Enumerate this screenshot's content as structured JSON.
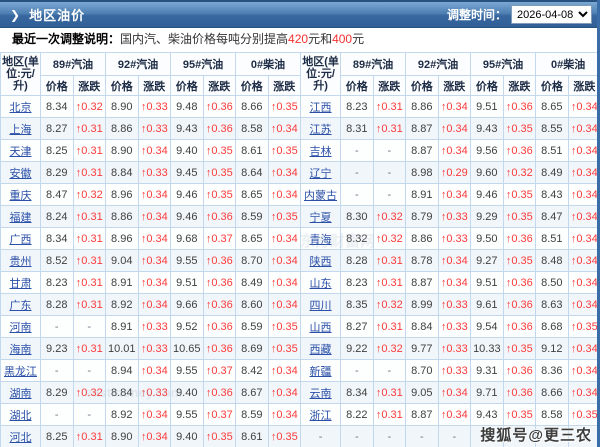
{
  "header_bar": {
    "arrow": "❯",
    "title": "地区油价",
    "adjust_label": "调整时间：",
    "date": "2026-04-08"
  },
  "notice": {
    "label": "最近一次调整说明：",
    "text_before": "国内汽、柴油价格每吨分别提高",
    "red1": "420",
    "mid": "元和",
    "red2": "400",
    "tail": "元"
  },
  "table": {
    "region_header": "地区(单位:元/升)",
    "groups": [
      "89#汽油",
      "92#汽油",
      "95#汽油",
      "0#柴油"
    ],
    "sub": [
      "价格",
      "涨跌"
    ],
    "rows": [
      {
        "l": [
          "北京",
          "8.34",
          "↑0.32",
          "8.90",
          "↑0.33",
          "9.48",
          "↑0.36",
          "8.66",
          "↑0.35"
        ],
        "r": [
          "江西",
          "8.23",
          "↑0.31",
          "8.86",
          "↑0.34",
          "9.51",
          "↑0.36",
          "8.65",
          "↑0.34"
        ]
      },
      {
        "l": [
          "上海",
          "8.27",
          "↑0.31",
          "8.86",
          "↑0.33",
          "9.43",
          "↑0.36",
          "8.58",
          "↑0.34"
        ],
        "r": [
          "江苏",
          "8.31",
          "↑0.31",
          "8.87",
          "↑0.34",
          "9.43",
          "↑0.35",
          "8.55",
          "↑0.34"
        ]
      },
      {
        "l": [
          "天津",
          "8.25",
          "↑0.31",
          "8.90",
          "↑0.34",
          "9.40",
          "↑0.35",
          "8.61",
          "↑0.35"
        ],
        "r": [
          "吉林",
          "-",
          "-",
          "8.87",
          "↑0.34",
          "9.56",
          "↑0.36",
          "8.51",
          "↑0.34"
        ]
      },
      {
        "l": [
          "安徽",
          "8.29",
          "↑0.31",
          "8.84",
          "↑0.33",
          "9.45",
          "↑0.35",
          "8.64",
          "↑0.34"
        ],
        "r": [
          "辽宁",
          "-",
          "-",
          "8.98",
          "↑0.29",
          "9.60",
          "↑0.32",
          "8.49",
          "↑0.34"
        ]
      },
      {
        "l": [
          "重庆",
          "8.47",
          "↑0.32",
          "8.96",
          "↑0.34",
          "9.46",
          "↑0.35",
          "8.65",
          "↑0.34"
        ],
        "r": [
          "内蒙古",
          "-",
          "-",
          "8.91",
          "↑0.34",
          "9.46",
          "↑0.35",
          "8.43",
          "↑0.34"
        ]
      },
      {
        "l": [
          "福建",
          "8.24",
          "↑0.31",
          "8.86",
          "↑0.34",
          "9.46",
          "↑0.36",
          "8.59",
          "↑0.35"
        ],
        "r": [
          "宁夏",
          "8.30",
          "↑0.32",
          "8.79",
          "↑0.33",
          "9.29",
          "↑0.35",
          "8.47",
          "↑0.34"
        ]
      },
      {
        "l": [
          "广西",
          "8.34",
          "↑0.31",
          "8.96",
          "↑0.34",
          "9.68",
          "↑0.37",
          "8.65",
          "↑0.34"
        ],
        "r": [
          "青海",
          "8.32",
          "↑0.32",
          "8.86",
          "↑0.33",
          "9.50",
          "↑0.36",
          "8.51",
          "↑0.34"
        ]
      },
      {
        "l": [
          "贵州",
          "8.52",
          "↑0.31",
          "9.04",
          "↑0.34",
          "9.55",
          "↑0.36",
          "8.70",
          "↑0.34"
        ],
        "r": [
          "陕西",
          "8.28",
          "↑0.31",
          "8.78",
          "↑0.34",
          "9.27",
          "↑0.35",
          "8.48",
          "↑0.34"
        ]
      },
      {
        "l": [
          "甘肃",
          "8.23",
          "↑0.31",
          "8.91",
          "↑0.34",
          "9.51",
          "↑0.36",
          "8.49",
          "↑0.34"
        ],
        "r": [
          "山东",
          "8.23",
          "↑0.31",
          "8.87",
          "↑0.34",
          "9.51",
          "↑0.36",
          "8.50",
          "↑0.34"
        ]
      },
      {
        "l": [
          "广东",
          "8.28",
          "↑0.31",
          "8.92",
          "↑0.34",
          "9.66",
          "↑0.36",
          "8.60",
          "↑0.34"
        ],
        "r": [
          "四川",
          "8.35",
          "↑0.32",
          "8.99",
          "↑0.33",
          "9.61",
          "↑0.36",
          "8.63",
          "↑0.34"
        ]
      },
      {
        "l": [
          "河南",
          "-",
          "-",
          "8.91",
          "↑0.33",
          "9.52",
          "↑0.36",
          "8.59",
          "↑0.35"
        ],
        "r": [
          "山西",
          "8.27",
          "↑0.31",
          "8.84",
          "↑0.33",
          "9.54",
          "↑0.36",
          "8.68",
          "↑0.35"
        ]
      },
      {
        "l": [
          "海南",
          "9.23",
          "↑0.31",
          "10.01",
          "↑0.33",
          "10.65",
          "↑0.36",
          "8.69",
          "↑0.35"
        ],
        "r": [
          "西藏",
          "9.22",
          "↑0.32",
          "9.77",
          "↑0.33",
          "10.33",
          "↑0.35",
          "9.12",
          "↑0.34"
        ]
      },
      {
        "l": [
          "黑龙江",
          "-",
          "-",
          "8.94",
          "↑0.34",
          "9.55",
          "↑0.37",
          "8.42",
          "↑0.34"
        ],
        "r": [
          "新疆",
          "-",
          "-",
          "8.70",
          "↑0.33",
          "9.31",
          "↑0.36",
          "8.36",
          "↑0.34"
        ]
      },
      {
        "l": [
          "湖南",
          "8.29",
          "↑0.32",
          "8.84",
          "↑0.33",
          "9.40",
          "↑0.36",
          "8.67",
          "↑0.34"
        ],
        "r": [
          "云南",
          "8.34",
          "↑0.31",
          "9.05",
          "↑0.34",
          "9.71",
          "↑0.36",
          "8.66",
          "↑0.34"
        ]
      },
      {
        "l": [
          "湖北",
          "-",
          "-",
          "8.92",
          "↑0.34",
          "9.55",
          "↑0.37",
          "8.59",
          "↑0.34"
        ],
        "r": [
          "浙江",
          "8.22",
          "↑0.31",
          "8.87",
          "↑0.34",
          "9.43",
          "↑0.35",
          "8.58",
          "↑0.35"
        ]
      },
      {
        "l": [
          "河北",
          "8.25",
          "↑0.31",
          "8.90",
          "↑0.34",
          "9.40",
          "↑0.35",
          "8.61",
          "↑0.35"
        ],
        "r": [
          "-",
          "-",
          "-",
          "-",
          "-",
          "-",
          "-",
          "-",
          "-"
        ]
      }
    ]
  },
  "watermarks": {
    "sohu": "搜狐号@更三农",
    "faint1": "eastmoney.com",
    "faint2": "东方财富网"
  }
}
